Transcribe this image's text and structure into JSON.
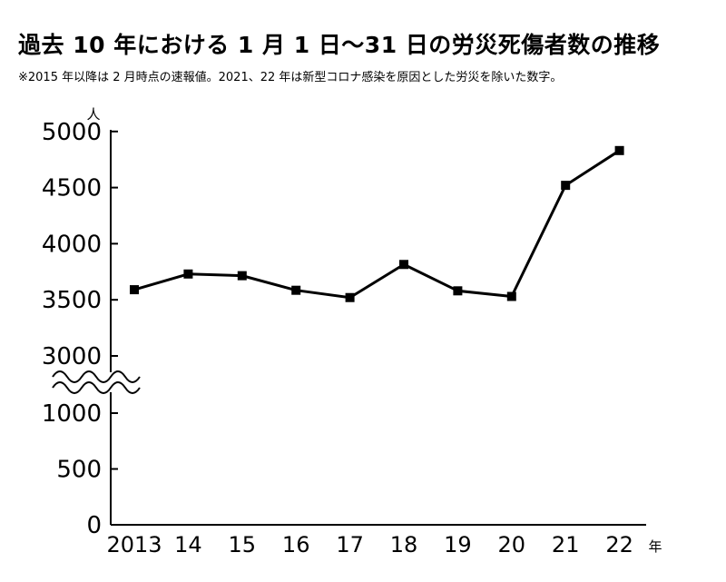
{
  "header": {
    "title": "過去 10 年における 1 月 1 日〜31 日の労災死傷者数の推移",
    "note": "※2015 年以降は 2 月時点の速報値。2021、22 年は新型コロナ感染を原因とした労災を除いた数字。"
  },
  "chart_data": {
    "type": "line",
    "title": "過去 10 年における 1 月 1 日〜31 日の労災死傷者数の推移",
    "subtitle": "※2015 年以降は 2 月時点の速報値。2021、22 年は新型コロナ感染を原因とした労災を除いた数字。",
    "ylabel": "人",
    "xlabel": "年",
    "categories": [
      "2013",
      "14",
      "15",
      "16",
      "17",
      "18",
      "19",
      "20",
      "21",
      "22"
    ],
    "series": [
      {
        "values": [
          3590,
          3730,
          3715,
          3585,
          3520,
          3815,
          3580,
          3530,
          4520,
          4830
        ]
      }
    ],
    "y_ticks_lower": [
      "0",
      "500",
      "1000"
    ],
    "y_ticks_upper": [
      "3000",
      "3500",
      "4000",
      "4500",
      "5000"
    ],
    "y_axis_break": "between 1000 and 3000",
    "ylim": [
      0,
      5000
    ],
    "grid": false,
    "legend": "none",
    "line_color": "#000000"
  }
}
